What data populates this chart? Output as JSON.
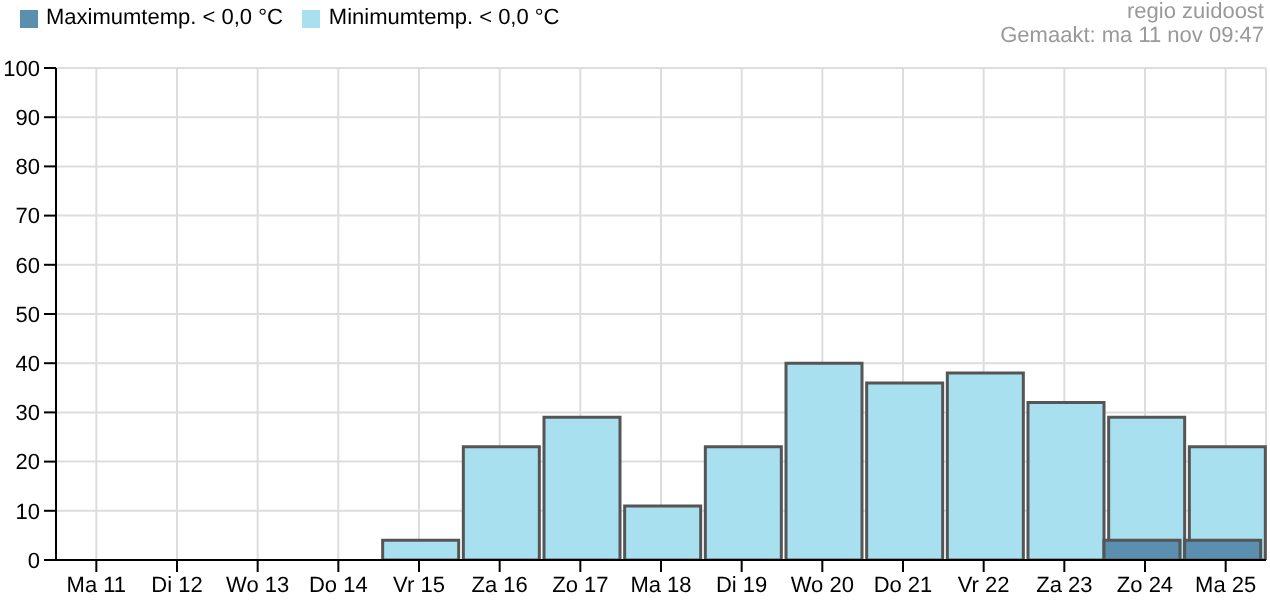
{
  "chart_data": {
    "type": "bar",
    "categories": [
      "Ma 11",
      "Di 12",
      "Wo 13",
      "Do 14",
      "Vr 15",
      "Za 16",
      "Zo 17",
      "Ma 18",
      "Di 19",
      "Wo 20",
      "Do 21",
      "Vr 22",
      "Za 23",
      "Zo 24",
      "Ma 25"
    ],
    "series": [
      {
        "name": "Minimumtemp. < 0,0 °C",
        "color": "#a8e0f0",
        "values": [
          0,
          0,
          0,
          0,
          4,
          23,
          29,
          11,
          23,
          40,
          36,
          38,
          32,
          29,
          23
        ]
      },
      {
        "name": "Maximumtemp. < 0,0 °C",
        "color": "#5a8fb0",
        "values": [
          0,
          0,
          0,
          0,
          0,
          0,
          0,
          0,
          0,
          0,
          0,
          0,
          0,
          4,
          4
        ]
      }
    ],
    "ylim": [
      0,
      100
    ],
    "yticks": [
      0,
      10,
      20,
      30,
      40,
      50,
      60,
      70,
      80,
      90,
      100
    ],
    "grid": true,
    "legend": "top left",
    "annotations": [
      "regio zuidoost",
      "Gemaakt: ma 11 nov 09:47"
    ]
  }
}
